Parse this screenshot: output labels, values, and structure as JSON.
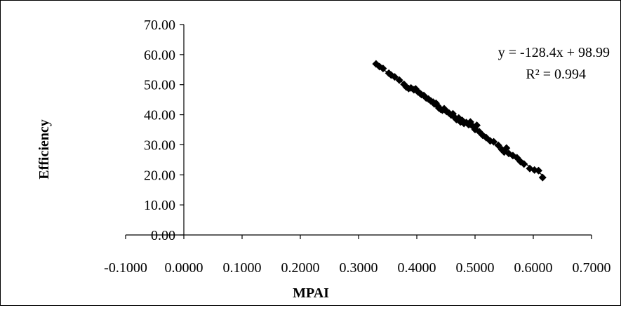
{
  "chart_data": {
    "type": "scatter",
    "title": "",
    "xlabel": "MPAI",
    "ylabel": "Efficiency",
    "xlim": [
      -0.1,
      0.7
    ],
    "ylim": [
      0,
      70
    ],
    "x_ticks": [
      "-0.1000",
      "0.0000",
      "0.1000",
      "0.2000",
      "0.3000",
      "0.4000",
      "0.5000",
      "0.6000",
      "0.7000"
    ],
    "y_ticks": [
      "0.00",
      "10.00",
      "20.00",
      "30.00",
      "40.00",
      "50.00",
      "60.00",
      "70.00"
    ],
    "grid": false,
    "marker_color": "#000000",
    "trendline": {
      "slope": -128.4,
      "intercept": 98.99,
      "equation": "y = -128.4x + 98.99",
      "r_squared": "R² = 0.994"
    },
    "series": [
      {
        "points": [
          [
            0.33,
            56.9
          ],
          [
            0.336,
            56.0
          ],
          [
            0.342,
            55.4
          ],
          [
            0.352,
            53.8
          ],
          [
            0.356,
            53.2
          ],
          [
            0.362,
            52.6
          ],
          [
            0.37,
            51.5
          ],
          [
            0.378,
            50.1
          ],
          [
            0.382,
            49.2
          ],
          [
            0.386,
            48.7
          ],
          [
            0.39,
            48.9
          ],
          [
            0.395,
            48.3
          ],
          [
            0.398,
            48.6
          ],
          [
            0.402,
            47.6
          ],
          [
            0.405,
            47.2
          ],
          [
            0.408,
            46.7
          ],
          [
            0.412,
            46.4
          ],
          [
            0.416,
            45.6
          ],
          [
            0.42,
            45.2
          ],
          [
            0.424,
            44.6
          ],
          [
            0.428,
            44.2
          ],
          [
            0.43,
            43.6
          ],
          [
            0.433,
            43.8
          ],
          [
            0.436,
            42.9
          ],
          [
            0.438,
            42.2
          ],
          [
            0.441,
            41.8
          ],
          [
            0.444,
            41.5
          ],
          [
            0.447,
            42.0
          ],
          [
            0.451,
            41.1
          ],
          [
            0.455,
            40.6
          ],
          [
            0.459,
            39.9
          ],
          [
            0.462,
            40.3
          ],
          [
            0.465,
            39.1
          ],
          [
            0.468,
            38.4
          ],
          [
            0.472,
            38.9
          ],
          [
            0.475,
            37.6
          ],
          [
            0.478,
            38.1
          ],
          [
            0.481,
            37.1
          ],
          [
            0.485,
            37.4
          ],
          [
            0.489,
            36.7
          ],
          [
            0.492,
            37.6
          ],
          [
            0.496,
            36.2
          ],
          [
            0.5,
            35.1
          ],
          [
            0.503,
            36.5
          ],
          [
            0.507,
            34.4
          ],
          [
            0.513,
            33.2
          ],
          [
            0.519,
            32.4
          ],
          [
            0.526,
            31.3
          ],
          [
            0.532,
            31.0
          ],
          [
            0.54,
            29.8
          ],
          [
            0.546,
            28.4
          ],
          [
            0.55,
            27.6
          ],
          [
            0.554,
            28.9
          ],
          [
            0.558,
            27.1
          ],
          [
            0.565,
            26.4
          ],
          [
            0.572,
            25.7
          ],
          [
            0.578,
            24.4
          ],
          [
            0.584,
            23.6
          ],
          [
            0.594,
            22.1
          ],
          [
            0.602,
            21.6
          ],
          [
            0.609,
            21.4
          ],
          [
            0.616,
            19.1
          ]
        ]
      }
    ]
  }
}
